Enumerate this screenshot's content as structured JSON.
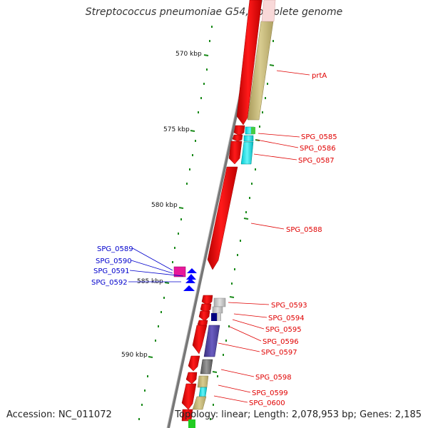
{
  "title": "Streptococcus pneumoniae G54, complete genome",
  "footer": {
    "accession": "Accession: NC_011072",
    "summary": "Topology: linear; Length: 2,078,953 bp; Genes: 2,185"
  },
  "scale_ticks": [
    "570 kbp",
    "575 kbp",
    "580 kbp",
    "585 kbp",
    "590 kbp"
  ],
  "genes_plus": [
    "prtA",
    "SPG_0585",
    "SPG_0586",
    "SPG_0587",
    "SPG_0588",
    "SPG_0593",
    "SPG_0594",
    "SPG_0595",
    "SPG_0596",
    "SPG_0597",
    "SPG_0598",
    "SPG_0599",
    "SPG_0600"
  ],
  "genes_minus": [
    "SPG_0589",
    "SPG_0590",
    "SPG_0591",
    "SPG_0592"
  ],
  "colors": {
    "forward_gene": "#ff0000",
    "reverse_gene": "#0000ff",
    "backbone": "#888888",
    "scale_tick": "#1a8a1a",
    "label_forward": "#e00000",
    "label_reverse": "#0000cc"
  }
}
